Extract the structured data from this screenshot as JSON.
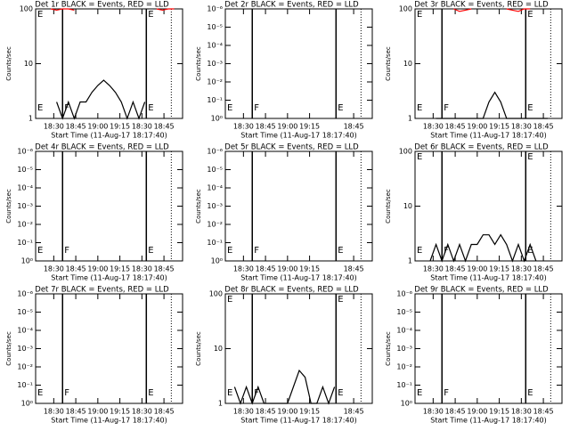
{
  "chart_data": [
    {
      "type": "line",
      "title": "Det 1r BLACK = Events, RED = LLD",
      "ylabel": "Counts/sec",
      "xlabel": "Start Time (11-Aug-17 18:17:40)",
      "log_y": true,
      "xlim": [
        17.67,
        117.67
      ],
      "ylim": [
        1,
        100
      ],
      "yticks": [
        1,
        10,
        100
      ],
      "xticks": [
        {
          "value": 30,
          "label": "18:30"
        },
        {
          "value": 45,
          "label": "18:45"
        },
        {
          "value": 60,
          "label": "19:00"
        },
        {
          "value": 75,
          "label": "19:15"
        },
        {
          "value": 90,
          "label": "18:30"
        },
        {
          "value": 105,
          "label": "18:45"
        }
      ],
      "markers": [
        36,
        93
      ],
      "dotted_markers": [
        110
      ],
      "annotations": [
        "E",
        "F",
        "E",
        "E",
        "E"
      ],
      "x": [
        20,
        24,
        28,
        32,
        36,
        40,
        44,
        48,
        52,
        56,
        60,
        64,
        68,
        72,
        76,
        80,
        84,
        88,
        92,
        96,
        100,
        104,
        108,
        112,
        116
      ],
      "series": [
        {
          "color": "#000000",
          "values": [
            null,
            null,
            null,
            2,
            1,
            2,
            1,
            2,
            2,
            3,
            4,
            5,
            4,
            3,
            2,
            1,
            2,
            1,
            2,
            null,
            null,
            null,
            null,
            null,
            null
          ]
        },
        {
          "color": "#ff0000",
          "values": [
            null,
            null,
            100,
            95,
            100,
            100,
            95,
            null,
            null,
            null,
            null,
            null,
            null,
            null,
            null,
            null,
            null,
            null,
            null,
            null,
            100,
            95,
            100,
            100,
            null
          ]
        }
      ]
    },
    {
      "type": "line",
      "title": "Det 2r BLACK = Events, RED = LLD",
      "ylabel": "Counts/sec",
      "xlabel": "Start Time (11-Aug-17 18:17:40)",
      "log_y": true,
      "xlim": [
        17.67,
        117.67
      ],
      "ylim": [
        1,
        1e-06
      ],
      "yticks": [
        {
          "value": 1,
          "label": "10⁰"
        },
        {
          "value": 0.1,
          "label": "10⁻¹"
        },
        {
          "value": 0.01,
          "label": "10⁻²"
        },
        {
          "value": 0.001,
          "label": "10⁻³"
        },
        {
          "value": 0.0001,
          "label": "10⁻⁴"
        },
        {
          "value": 1e-05,
          "label": "10⁻⁵"
        },
        {
          "value": 1e-06,
          "label": "10⁻⁶"
        }
      ],
      "xticks": [
        {
          "value": 30,
          "label": "18:30"
        },
        {
          "value": 45,
          "label": "18:45"
        },
        {
          "value": 60,
          "label": "19:00"
        },
        {
          "value": 75,
          "label": "19:15"
        },
        {
          "value": 105,
          "label": "18:45"
        }
      ],
      "markers": [
        36,
        93
      ],
      "dotted_markers": [
        110
      ],
      "annotations": [
        "E",
        "F",
        "E"
      ]
    },
    {
      "type": "line",
      "title": "Det 3r BLACK = Events, RED = LLD",
      "ylabel": "Counts/sec",
      "xlabel": "Start Time (11-Aug-17 18:17:40)",
      "log_y": true,
      "xlim": [
        17.67,
        117.67
      ],
      "ylim": [
        1,
        100
      ],
      "yticks": [
        1,
        10,
        100
      ],
      "xticks": [
        {
          "value": 30,
          "label": "18:30"
        },
        {
          "value": 45,
          "label": "18:45"
        },
        {
          "value": 60,
          "label": "19:00"
        },
        {
          "value": 75,
          "label": "19:15"
        },
        {
          "value": 90,
          "label": "18:30"
        },
        {
          "value": 105,
          "label": "18:45"
        }
      ],
      "markers": [
        36,
        93
      ],
      "dotted_markers": [
        110
      ],
      "annotations": [
        "E",
        "F",
        "E",
        "E",
        "E"
      ],
      "x": [
        20,
        24,
        28,
        32,
        36,
        40,
        44,
        48,
        52,
        56,
        60,
        64,
        68,
        72,
        76,
        80,
        84,
        88,
        92,
        96,
        100,
        104,
        108,
        112,
        116
      ],
      "series": [
        {
          "color": "#000000",
          "values": [
            null,
            null,
            null,
            1,
            1,
            1,
            1,
            1,
            1,
            1,
            1,
            1,
            2,
            3,
            2,
            1,
            1,
            1,
            1,
            1,
            1,
            1,
            1,
            null,
            null
          ]
        },
        {
          "color": "#ff0000",
          "values": [
            null,
            null,
            null,
            null,
            null,
            null,
            100,
            90,
            95,
            100,
            null,
            null,
            null,
            null,
            null,
            100,
            95,
            90,
            100,
            100,
            null,
            null,
            null,
            null,
            null
          ]
        }
      ]
    },
    {
      "type": "line",
      "title": "Det 4r BLACK = Events, RED = LLD",
      "ylabel": "Counts/sec",
      "xlabel": "Start Time (11-Aug-17 18:17:40)",
      "log_y": true,
      "xlim": [
        17.67,
        117.67
      ],
      "ylim": [
        1,
        1e-06
      ],
      "yticks": [
        {
          "value": 1,
          "label": "10⁰"
        },
        {
          "value": 0.1,
          "label": "10⁻¹"
        },
        {
          "value": 0.01,
          "label": "10⁻²"
        },
        {
          "value": 0.001,
          "label": "10⁻³"
        },
        {
          "value": 0.0001,
          "label": "10⁻⁴"
        },
        {
          "value": 1e-05,
          "label": "10⁻⁵"
        },
        {
          "value": 1e-06,
          "label": "10⁻⁶"
        }
      ],
      "xticks": [
        {
          "value": 30,
          "label": "18:30"
        },
        {
          "value": 45,
          "label": "18:45"
        },
        {
          "value": 60,
          "label": "19:00"
        },
        {
          "value": 75,
          "label": "19:15"
        },
        {
          "value": 90,
          "label": "18:30"
        },
        {
          "value": 105,
          "label": "18:45"
        }
      ],
      "markers": [
        36,
        93
      ],
      "dotted_markers": [
        110
      ],
      "annotations": [
        "E",
        "F",
        "E"
      ]
    },
    {
      "type": "line",
      "title": "Det 5r BLACK = Events, RED = LLD",
      "ylabel": "Counts/sec",
      "xlabel": "Start Time (11-Aug-17 18:17:40)",
      "log_y": true,
      "xlim": [
        17.67,
        117.67
      ],
      "ylim": [
        1,
        1e-06
      ],
      "yticks": [
        {
          "value": 1,
          "label": "10⁰"
        },
        {
          "value": 0.1,
          "label": "10⁻¹"
        },
        {
          "value": 0.01,
          "label": "10⁻²"
        },
        {
          "value": 0.001,
          "label": "10⁻³"
        },
        {
          "value": 0.0001,
          "label": "10⁻⁴"
        },
        {
          "value": 1e-05,
          "label": "10⁻⁵"
        },
        {
          "value": 1e-06,
          "label": "10⁻⁶"
        }
      ],
      "xticks": [
        {
          "value": 30,
          "label": "18:30"
        },
        {
          "value": 45,
          "label": "18:45"
        },
        {
          "value": 60,
          "label": "19:00"
        },
        {
          "value": 75,
          "label": "19:15"
        },
        {
          "value": 105,
          "label": "18:45"
        }
      ],
      "markers": [
        36,
        93
      ],
      "dotted_markers": [
        110
      ],
      "annotations": [
        "E",
        "F",
        "E"
      ]
    },
    {
      "type": "line",
      "title": "Det 6r BLACK = Events, RED = LLD",
      "ylabel": "Counts/sec",
      "xlabel": "Start Time (11-Aug-17 18:17:40)",
      "log_y": true,
      "xlim": [
        17.67,
        117.67
      ],
      "ylim": [
        1,
        100
      ],
      "yticks": [
        1,
        10,
        100
      ],
      "xticks": [
        {
          "value": 30,
          "label": "18:30"
        },
        {
          "value": 45,
          "label": "18:45"
        },
        {
          "value": 60,
          "label": "19:00"
        },
        {
          "value": 75,
          "label": "19:15"
        },
        {
          "value": 90,
          "label": "18:30"
        },
        {
          "value": 105,
          "label": "18:45"
        }
      ],
      "markers": [
        36,
        93
      ],
      "dotted_markers": [
        110
      ],
      "annotations": [
        "E",
        "F",
        "E",
        "E",
        "E"
      ],
      "x": [
        20,
        24,
        28,
        32,
        36,
        40,
        44,
        48,
        52,
        56,
        60,
        64,
        68,
        72,
        76,
        80,
        84,
        88,
        92,
        96,
        100,
        104,
        108,
        112,
        116
      ],
      "series": [
        {
          "color": "#000000",
          "values": [
            null,
            null,
            1,
            2,
            1,
            2,
            1,
            2,
            1,
            2,
            2,
            3,
            3,
            2,
            3,
            2,
            1,
            2,
            1,
            2,
            1,
            null,
            null,
            null,
            null
          ]
        }
      ]
    },
    {
      "type": "line",
      "title": "Det 7r BLACK = Events, RED = LLD",
      "ylabel": "Counts/sec",
      "xlabel": "Start Time (11-Aug-17 18:17:40)",
      "log_y": true,
      "xlim": [
        17.67,
        117.67
      ],
      "ylim": [
        1,
        1e-06
      ],
      "yticks": [
        {
          "value": 1,
          "label": "10⁰"
        },
        {
          "value": 0.1,
          "label": "10⁻¹"
        },
        {
          "value": 0.01,
          "label": "10⁻²"
        },
        {
          "value": 0.001,
          "label": "10⁻³"
        },
        {
          "value": 0.0001,
          "label": "10⁻⁴"
        },
        {
          "value": 1e-05,
          "label": "10⁻⁵"
        },
        {
          "value": 1e-06,
          "label": "10⁻⁶"
        }
      ],
      "xticks": [
        {
          "value": 30,
          "label": "18:30"
        },
        {
          "value": 45,
          "label": "18:45"
        },
        {
          "value": 60,
          "label": "19:00"
        },
        {
          "value": 75,
          "label": "19:15"
        },
        {
          "value": 90,
          "label": "18:30"
        },
        {
          "value": 105,
          "label": "18:45"
        }
      ],
      "markers": [
        36,
        93
      ],
      "dotted_markers": [
        110
      ],
      "annotations": [
        "E",
        "F",
        "E"
      ]
    },
    {
      "type": "line",
      "title": "Det 8r BLACK = Events, RED = LLD",
      "ylabel": "Counts/sec",
      "xlabel": "Start Time (11-Aug-17 18:17:40)",
      "log_y": true,
      "xlim": [
        17.67,
        117.67
      ],
      "ylim": [
        1,
        100
      ],
      "yticks": [
        1,
        10,
        100
      ],
      "xticks": [
        {
          "value": 30,
          "label": "18:30"
        },
        {
          "value": 45,
          "label": "18:45"
        },
        {
          "value": 60,
          "label": "19:00"
        },
        {
          "value": 75,
          "label": "19:15"
        },
        {
          "value": 105,
          "label": "18:45"
        }
      ],
      "markers": [
        36,
        93
      ],
      "dotted_markers": [
        110
      ],
      "annotations": [
        "E",
        "F",
        "E",
        "E",
        "E"
      ],
      "x": [
        20,
        24,
        28,
        32,
        36,
        40,
        44,
        48,
        52,
        56,
        60,
        64,
        68,
        72,
        76,
        80,
        84,
        88,
        92,
        96,
        100,
        104,
        108,
        112,
        116
      ],
      "series": [
        {
          "color": "#000000",
          "values": [
            null,
            2,
            1,
            2,
            1,
            2,
            1,
            1,
            1,
            1,
            1,
            2,
            4,
            3,
            1,
            1,
            2,
            1,
            2,
            null,
            null,
            null,
            null,
            null,
            null
          ]
        }
      ]
    },
    {
      "type": "line",
      "title": "Det 9r BLACK = Events, RED = LLD",
      "ylabel": "Counts/sec",
      "xlabel": "Start Time (11-Aug-17 18:17:40)",
      "log_y": true,
      "xlim": [
        17.67,
        117.67
      ],
      "ylim": [
        1,
        1e-06
      ],
      "yticks": [
        {
          "value": 1,
          "label": "10⁰"
        },
        {
          "value": 0.1,
          "label": "10⁻¹"
        },
        {
          "value": 0.01,
          "label": "10⁻²"
        },
        {
          "value": 0.001,
          "label": "10⁻³"
        },
        {
          "value": 0.0001,
          "label": "10⁻⁴"
        },
        {
          "value": 1e-05,
          "label": "10⁻⁵"
        },
        {
          "value": 1e-06,
          "label": "10⁻⁶"
        }
      ],
      "xticks": [
        {
          "value": 30,
          "label": "18:30"
        },
        {
          "value": 45,
          "label": "18:45"
        },
        {
          "value": 60,
          "label": "19:00"
        },
        {
          "value": 75,
          "label": "19:15"
        },
        {
          "value": 90,
          "label": "18:30"
        },
        {
          "value": 105,
          "label": "18:45"
        }
      ],
      "markers": [
        36,
        93
      ],
      "dotted_markers": [
        110
      ],
      "annotations": [
        "E",
        "F",
        "E"
      ]
    }
  ]
}
